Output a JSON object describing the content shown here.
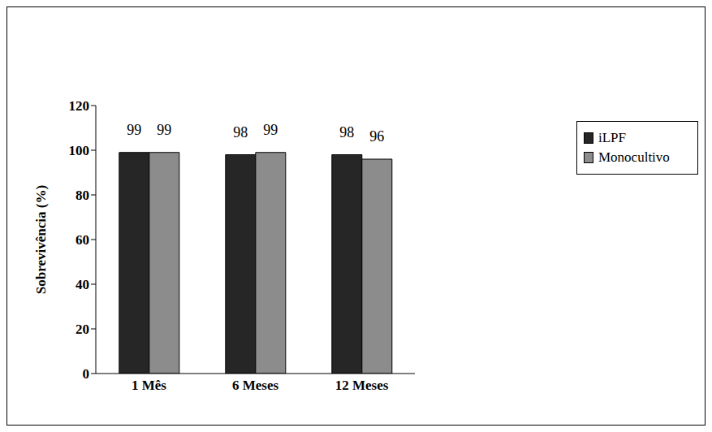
{
  "chart_data": {
    "type": "bar",
    "categories": [
      "1 Mês",
      "6 Meses",
      "12 Meses"
    ],
    "series": [
      {
        "name": "iLPF",
        "color": "#262626",
        "values": [
          99,
          98,
          98
        ]
      },
      {
        "name": "Monocultivo",
        "color": "#8c8c8c",
        "values": [
          99,
          99,
          96
        ]
      }
    ],
    "y_label": "Sobrevivência (%)",
    "ylim": [
      0,
      120
    ],
    "yticks": [
      0,
      20,
      40,
      60,
      80,
      100,
      120
    ],
    "grid": false,
    "legend": "upper right",
    "data_labels": true
  }
}
